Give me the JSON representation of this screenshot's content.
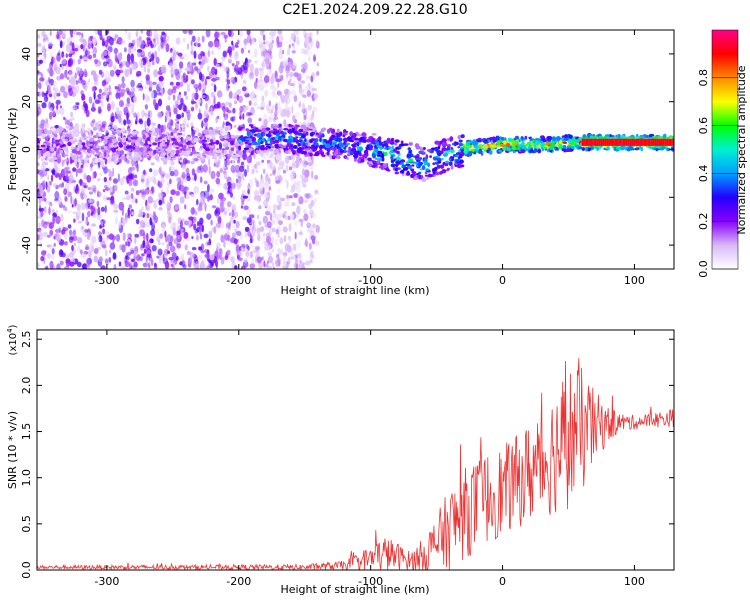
{
  "title": "C2E1.2024.209.22.28.G10",
  "chart_data": [
    {
      "type": "heatmap",
      "xlabel": "Height of straight line (km)",
      "ylabel": "Frequency (Hz)",
      "xlim": [
        -353,
        130
      ],
      "ylim": [
        -50,
        50
      ],
      "xticks": [
        -300,
        -200,
        -100,
        0,
        100
      ],
      "yticks": [
        -40,
        -20,
        0,
        20,
        40
      ],
      "colorbar": {
        "label": "Normalized spectral amplitude",
        "range": [
          0.0,
          1.0
        ],
        "ticks": [
          "0.0",
          "0.2",
          "0.4",
          "0.6",
          "0.8"
        ],
        "colormap": [
          "#ffffff",
          "#d8b8f8",
          "#8800ff",
          "#2200ff",
          "#00a0ff",
          "#00f0d0",
          "#00ff00",
          "#ffff00",
          "#ff8800",
          "#ff0000",
          "#ff0088"
        ]
      },
      "ridge": {
        "description": "frequency center of strong signal vs height",
        "x": [
          -200,
          -170,
          -140,
          -120,
          -100,
          -80,
          -60,
          -50,
          -40,
          -30,
          -20,
          0,
          30,
          60,
          130
        ],
        "y": [
          4,
          5,
          3,
          2,
          0,
          -3,
          -6,
          -4,
          -2,
          0,
          1,
          2,
          2,
          3,
          3
        ]
      }
    },
    {
      "type": "line",
      "xlabel": "Height of straight line (km)",
      "ylabel": "SNR (10 * v/v)",
      "yscale_label": "(x10",
      "yscale_exp": "4",
      "yscale_close": ")",
      "xlim": [
        -353,
        130
      ],
      "ylim": [
        0.0,
        2.6
      ],
      "xticks": [
        -300,
        -200,
        -100,
        0,
        100
      ],
      "yticks": [
        "0.0",
        "0.5",
        "1.0",
        "1.5",
        "2.0",
        "2.5"
      ],
      "color": "#ee3333",
      "envelope": {
        "x": [
          -353,
          -150,
          -120,
          -100,
          -90,
          -80,
          -70,
          -60,
          -50,
          -40,
          -30,
          -20,
          -10,
          0,
          10,
          20,
          30,
          40,
          50,
          60,
          70,
          80,
          90,
          100,
          110,
          130
        ],
        "base": [
          0.03,
          0.03,
          0.05,
          0.12,
          0.18,
          0.15,
          0.1,
          0.15,
          0.3,
          0.45,
          0.6,
          0.7,
          0.8,
          0.85,
          0.95,
          1.05,
          1.15,
          1.3,
          1.45,
          1.5,
          1.55,
          1.58,
          1.6,
          1.6,
          1.62,
          1.65
        ],
        "spread": [
          0.02,
          0.03,
          0.05,
          0.15,
          0.2,
          0.15,
          0.1,
          0.2,
          0.3,
          0.45,
          0.5,
          0.5,
          0.5,
          0.5,
          0.5,
          0.55,
          0.6,
          0.7,
          0.8,
          0.7,
          0.4,
          0.2,
          0.1,
          0.08,
          0.08,
          0.1
        ]
      }
    }
  ]
}
